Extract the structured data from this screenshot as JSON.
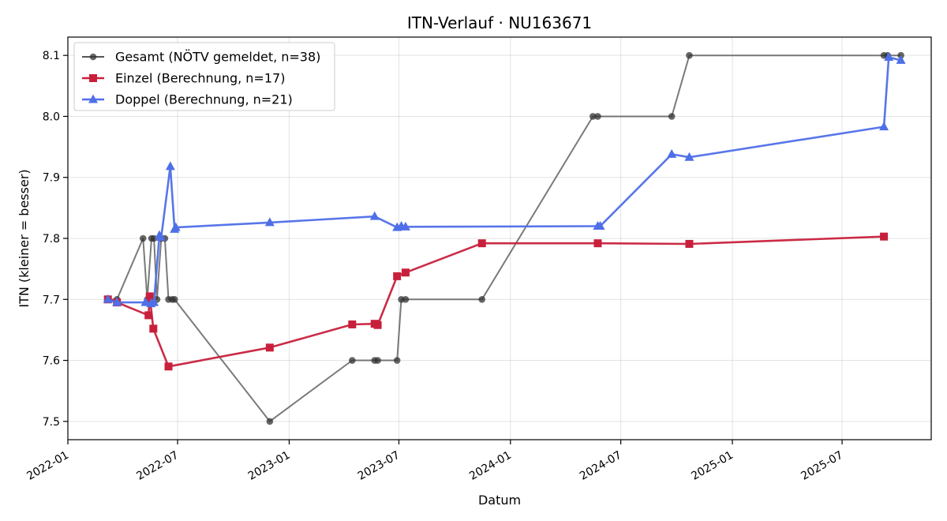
{
  "chart_data": {
    "type": "line",
    "title": "ITN-Verlauf · NU163671",
    "xlabel": "Datum",
    "ylabel": "ITN  (kleiner = besser)",
    "xlim": [
      "2022-01-01",
      "2025-11-25"
    ],
    "ylim": [
      7.47,
      8.13
    ],
    "x_ticks": [
      "2022-01",
      "2022-07",
      "2023-01",
      "2023-07",
      "2024-01",
      "2024-07",
      "2025-01",
      "2025-07"
    ],
    "y_ticks": [
      "7.5",
      "7.6",
      "7.7",
      "7.8",
      "7.9",
      "8.0",
      "8.1"
    ],
    "grid": true,
    "legend_position": "top-left",
    "series": [
      {
        "name": "Gesamt (NÖTV gemeldet, n=38)",
        "color": "#555555",
        "marker": "circle",
        "points": [
          [
            "2022-03-08",
            7.7
          ],
          [
            "2022-03-23",
            7.7
          ],
          [
            "2022-05-05",
            7.8
          ],
          [
            "2022-05-12",
            7.7
          ],
          [
            "2022-05-19",
            7.8
          ],
          [
            "2022-05-23",
            7.8
          ],
          [
            "2022-05-28",
            7.7
          ],
          [
            "2022-06-04",
            7.8
          ],
          [
            "2022-06-10",
            7.8
          ],
          [
            "2022-06-16",
            7.7
          ],
          [
            "2022-06-22",
            7.7
          ],
          [
            "2022-06-26",
            7.7
          ],
          [
            "2022-11-30",
            7.5
          ],
          [
            "2023-04-15",
            7.6
          ],
          [
            "2023-05-22",
            7.6
          ],
          [
            "2023-05-27",
            7.6
          ],
          [
            "2023-06-28",
            7.6
          ],
          [
            "2023-07-05",
            7.7
          ],
          [
            "2023-07-12",
            7.7
          ],
          [
            "2023-11-15",
            7.7
          ],
          [
            "2024-05-16",
            8.0
          ],
          [
            "2024-05-24",
            8.0
          ],
          [
            "2024-09-23",
            8.0
          ],
          [
            "2024-10-22",
            8.1
          ],
          [
            "2025-09-08",
            8.1
          ],
          [
            "2025-09-14",
            8.1
          ],
          [
            "2025-10-06",
            8.1
          ]
        ]
      },
      {
        "name": "Einzel (Berechnung, n=17)",
        "color": "#c8203c",
        "marker": "square",
        "points": [
          [
            "2022-03-08",
            7.7
          ],
          [
            "2022-03-23",
            7.695
          ],
          [
            "2022-05-14",
            7.674
          ],
          [
            "2022-05-16",
            7.705
          ],
          [
            "2022-05-22",
            7.652
          ],
          [
            "2022-06-16",
            7.59
          ],
          [
            "2022-11-30",
            7.621
          ],
          [
            "2023-04-15",
            7.659
          ],
          [
            "2023-05-22",
            7.66
          ],
          [
            "2023-05-27",
            7.658
          ],
          [
            "2023-06-28",
            7.738
          ],
          [
            "2023-07-12",
            7.744
          ],
          [
            "2023-11-15",
            7.792
          ],
          [
            "2024-05-24",
            7.792
          ],
          [
            "2024-10-22",
            7.791
          ],
          [
            "2025-09-08",
            7.803
          ]
        ]
      },
      {
        "name": "Doppel (Berechnung, n=21)",
        "color": "#4f6fe8",
        "marker": "triangle",
        "points": [
          [
            "2022-03-08",
            7.7
          ],
          [
            "2022-03-23",
            7.695
          ],
          [
            "2022-05-09",
            7.695
          ],
          [
            "2022-05-18",
            7.693
          ],
          [
            "2022-05-23",
            7.695
          ],
          [
            "2022-06-01",
            7.805
          ],
          [
            "2022-06-04",
            7.802
          ],
          [
            "2022-06-19",
            7.918
          ],
          [
            "2022-06-26",
            7.815
          ],
          [
            "2022-06-28",
            7.818
          ],
          [
            "2022-11-30",
            7.826
          ],
          [
            "2023-05-22",
            7.836
          ],
          [
            "2023-06-28",
            7.818
          ],
          [
            "2023-07-05",
            7.82
          ],
          [
            "2023-07-12",
            7.819
          ],
          [
            "2024-05-24",
            7.82
          ],
          [
            "2024-05-28",
            7.82
          ],
          [
            "2024-09-23",
            7.938
          ],
          [
            "2024-10-22",
            7.933
          ],
          [
            "2025-09-08",
            7.983
          ],
          [
            "2025-09-16",
            8.097
          ],
          [
            "2025-10-06",
            8.092
          ]
        ]
      }
    ]
  }
}
